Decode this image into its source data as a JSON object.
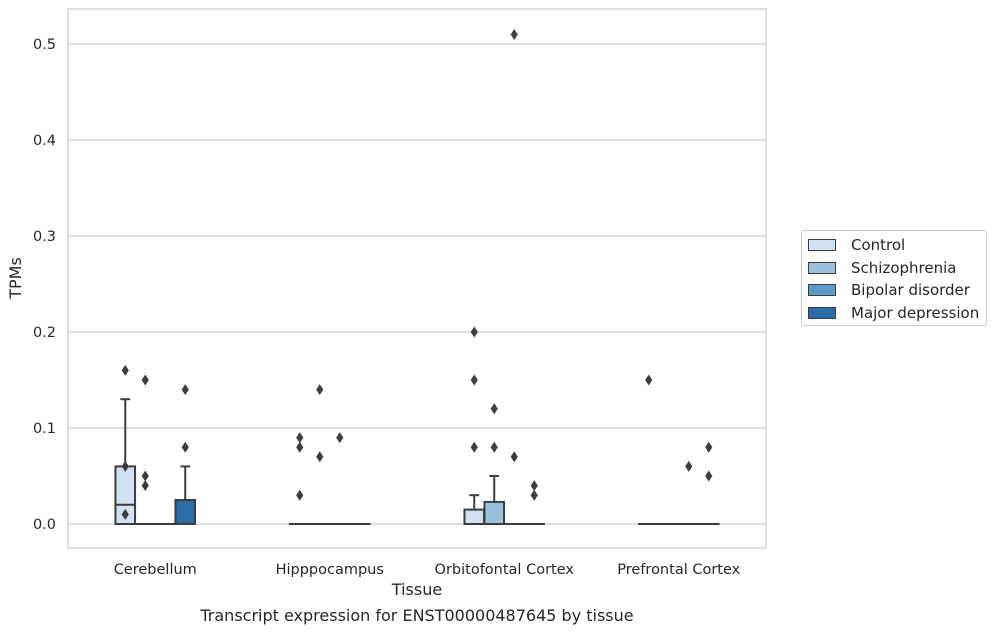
{
  "chart_data": {
    "type": "box",
    "title": "",
    "xlabel": "Tissue",
    "ylabel": "TPMs",
    "caption": "Transcript expression for ENST00000487645 by tissue",
    "ylim": [
      -0.025,
      0.5365
    ],
    "yticks": [
      "0.0",
      "0.1",
      "0.2",
      "0.3",
      "0.4",
      "0.5"
    ],
    "grid": true,
    "legend_position": "right",
    "categories": [
      "Cerebellum",
      "Hipppocampus",
      "Orbitofontal Cortex",
      "Prefrontal Cortex"
    ],
    "series": [
      {
        "name": "Control",
        "color": "#d2e1f1",
        "boxes": [
          {
            "q1": 0,
            "median": 0.02,
            "q3": 0.06,
            "whislo": 0,
            "whishi": 0.13,
            "fliers": [
              0.16,
              0.06,
              0.01
            ]
          },
          {
            "q1": 0,
            "median": 0,
            "q3": 0,
            "whislo": 0,
            "whishi": 0,
            "fliers": [
              0.09,
              0.08,
              0.03
            ]
          },
          {
            "q1": 0,
            "median": 0,
            "q3": 0.015,
            "whislo": 0,
            "whishi": 0.03,
            "fliers": [
              0.2,
              0.15,
              0.08
            ]
          },
          {
            "q1": 0,
            "median": 0,
            "q3": 0,
            "whislo": 0,
            "whishi": 0,
            "fliers": [
              0.15
            ]
          }
        ]
      },
      {
        "name": "Schizophrenia",
        "color": "#9ac0db",
        "boxes": [
          {
            "q1": 0,
            "median": 0,
            "q3": 0,
            "whislo": 0,
            "whishi": 0,
            "fliers": [
              0.15,
              0.05,
              0.04
            ]
          },
          {
            "q1": 0,
            "median": 0,
            "q3": 0,
            "whislo": 0,
            "whishi": 0,
            "fliers": [
              0.14,
              0.07
            ]
          },
          {
            "q1": 0,
            "median": 0,
            "q3": 0.023,
            "whislo": 0,
            "whishi": 0.05,
            "fliers": [
              0.12,
              0.08
            ]
          },
          {
            "q1": 0,
            "median": 0,
            "q3": 0,
            "whislo": 0,
            "whishi": 0,
            "fliers": []
          }
        ]
      },
      {
        "name": "Bipolar disorder",
        "color": "#5a9ac6",
        "boxes": [
          {
            "q1": 0,
            "median": 0,
            "q3": 0,
            "whislo": 0,
            "whishi": 0,
            "fliers": []
          },
          {
            "q1": 0,
            "median": 0,
            "q3": 0,
            "whislo": 0,
            "whishi": 0,
            "fliers": [
              0.09
            ]
          },
          {
            "q1": 0,
            "median": 0,
            "q3": 0,
            "whislo": 0,
            "whishi": 0,
            "fliers": [
              0.51,
              0.07
            ]
          },
          {
            "q1": 0,
            "median": 0,
            "q3": 0,
            "whislo": 0,
            "whishi": 0,
            "fliers": [
              0.06
            ]
          }
        ]
      },
      {
        "name": "Major depression",
        "color": "#2c6ca9",
        "boxes": [
          {
            "q1": 0,
            "median": 0,
            "q3": 0.025,
            "whislo": 0,
            "whishi": 0.06,
            "fliers": [
              0.14,
              0.08
            ]
          },
          {
            "q1": 0,
            "median": 0,
            "q3": 0,
            "whislo": 0,
            "whishi": 0,
            "fliers": []
          },
          {
            "q1": 0,
            "median": 0,
            "q3": 0,
            "whislo": 0,
            "whishi": 0,
            "fliers": [
              0.04,
              0.03
            ]
          },
          {
            "q1": 0,
            "median": 0,
            "q3": 0,
            "whislo": 0,
            "whishi": 0,
            "fliers": [
              0.08,
              0.05
            ]
          }
        ]
      }
    ]
  }
}
